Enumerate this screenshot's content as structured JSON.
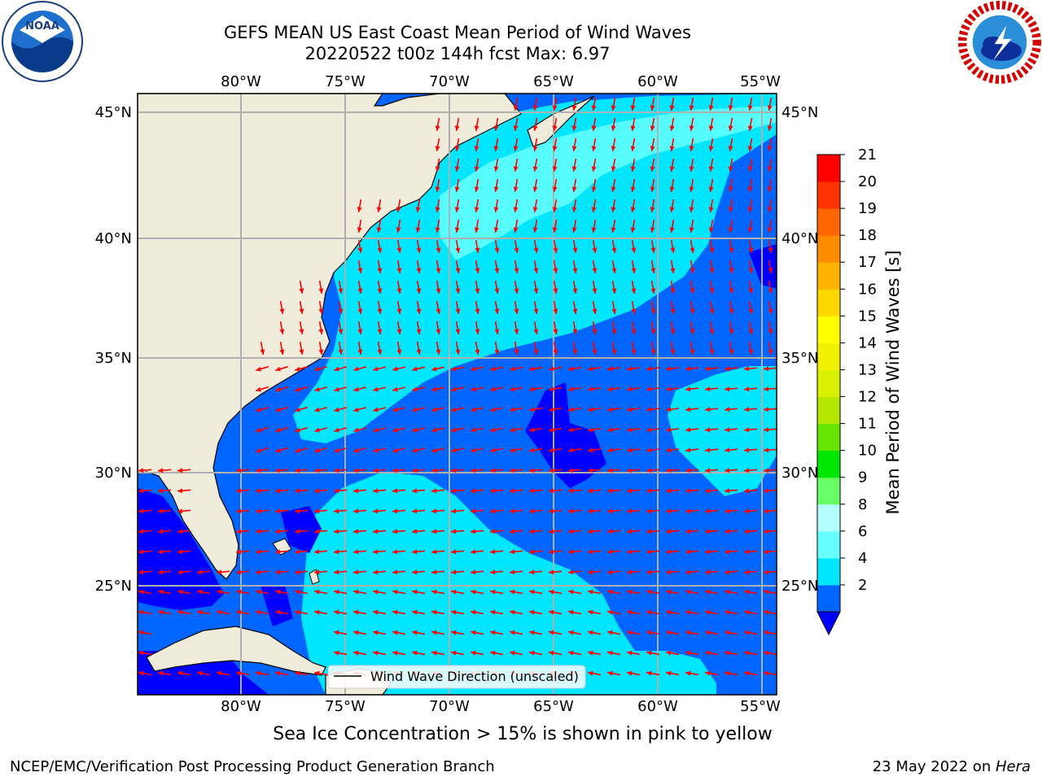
{
  "title_line1": "GEFS MEAN US East Coast Mean Period of Wind Waves",
  "title_line2": "20220522 t00z 144h fcst   Max: 6.97",
  "caption": "Sea Ice Concentration > 15% is shown in pink to yellow",
  "footer_left": "NCEP/EMC/Verification Post Processing Product Generation Branch",
  "footer_right_date": "23 May 2022 on ",
  "footer_right_machine": "Hera",
  "logos": {
    "left": "noaa-logo",
    "right": "nws-logo",
    "left_text": "NOAA"
  },
  "map": {
    "lon_ticks": [
      "80°W",
      "75°W",
      "70°W",
      "65°W",
      "60°W",
      "55°W"
    ],
    "lat_ticks": [
      "45°N",
      "40°N",
      "35°N",
      "30°N",
      "25°N"
    ],
    "legend_label": "Wind Wave Direction (unscaled)",
    "land_color": "#efecdc",
    "arrow_color": "#ff0000"
  },
  "colorbar": {
    "label": "Mean Period of Wind Waves [s]",
    "ticks": [
      "21",
      "20",
      "19",
      "18",
      "17",
      "16",
      "15",
      "14",
      "13",
      "12",
      "11",
      "10",
      "9",
      "8",
      "6",
      "4",
      "2"
    ],
    "colors_bottom_to_top": [
      "#0066ff",
      "#00e6ff",
      "#66ffff",
      "#b3ffff",
      "#66ff66",
      "#00e600",
      "#66e600",
      "#b3e600",
      "#d9f000",
      "#f0f000",
      "#ffff00",
      "#ffd700",
      "#ffb300",
      "#ff8c00",
      "#ff6600",
      "#ff3300",
      "#ff0000"
    ],
    "under_color": "#0000ff"
  }
}
